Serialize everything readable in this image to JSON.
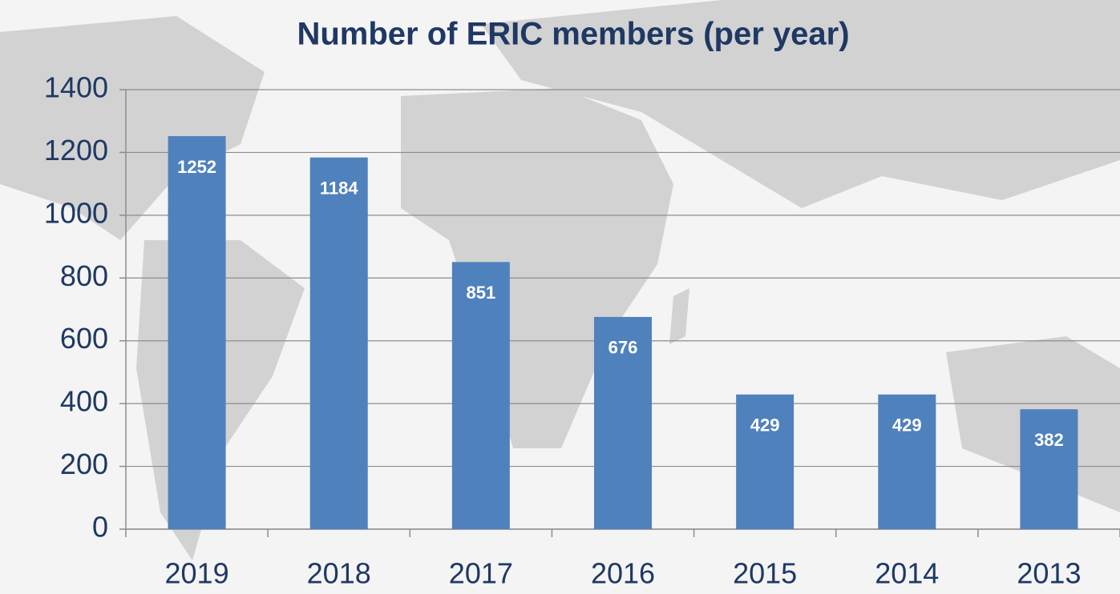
{
  "chart_data": {
    "type": "bar",
    "title": "Number of ERIC members (per year)",
    "categories": [
      "2019",
      "2018",
      "2017",
      "2016",
      "2015",
      "2014",
      "2013"
    ],
    "values": [
      1252,
      1184,
      851,
      676,
      429,
      429,
      382
    ],
    "color": "#4f81bd",
    "ylim": [
      0,
      1400
    ],
    "yticks": [
      0,
      200,
      400,
      600,
      800,
      1000,
      1200,
      1400
    ],
    "grid": true
  }
}
